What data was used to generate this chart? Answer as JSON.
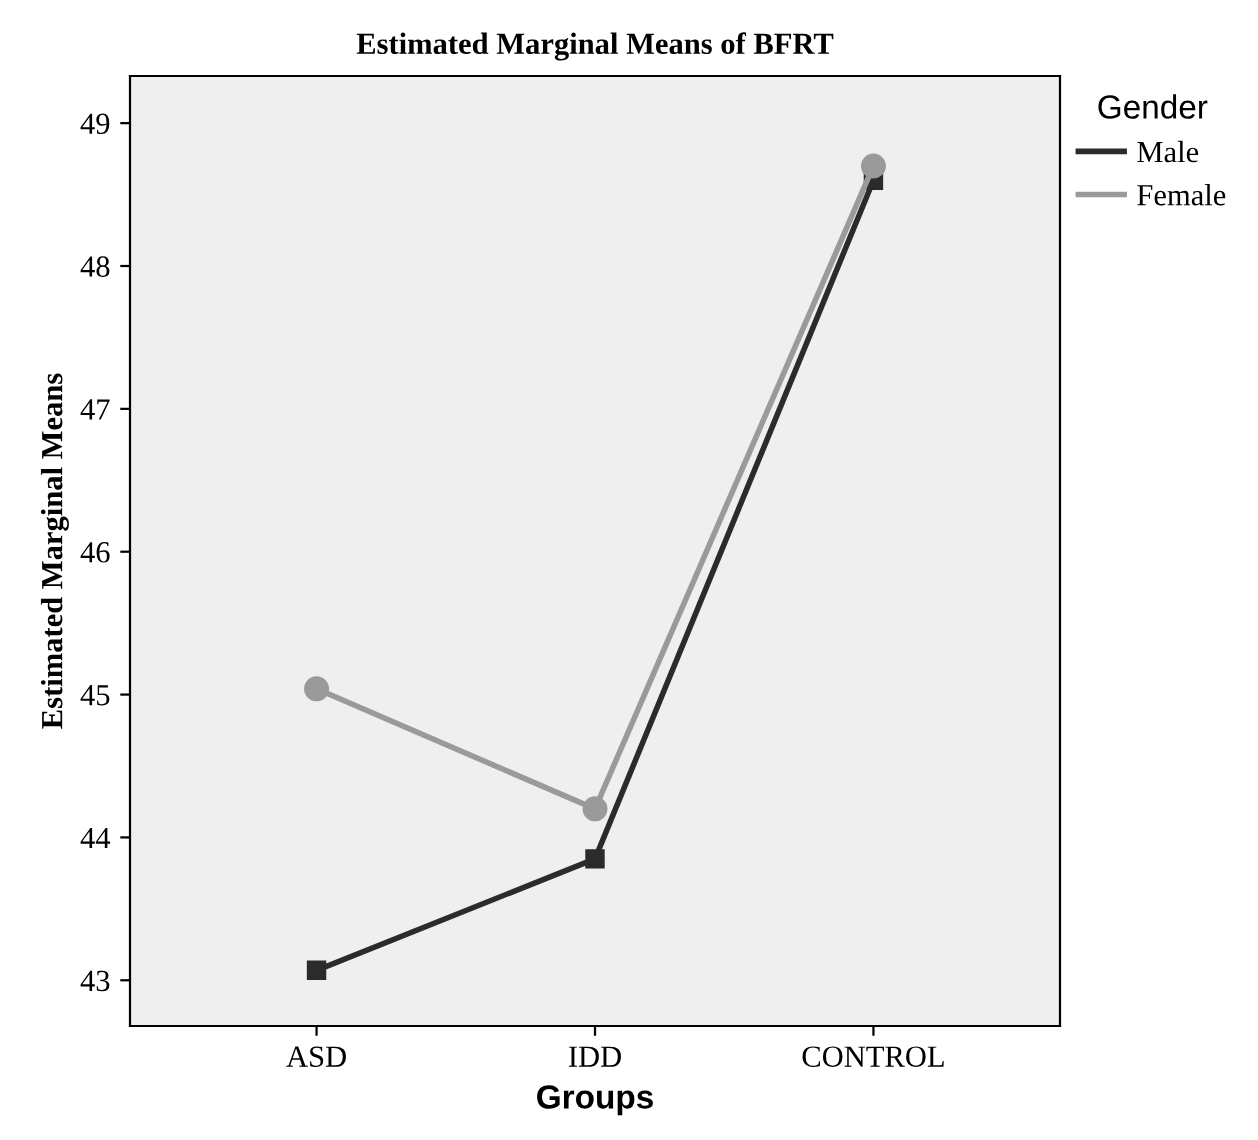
{
  "chart_data": {
    "type": "line",
    "title": "Estimated Marginal Means of BFRT",
    "xlabel": "Groups",
    "ylabel": "Estimated Marginal Means",
    "legend_title": "Gender",
    "categories": [
      "ASD",
      "IDD",
      "CONTROL"
    ],
    "series": [
      {
        "name": "Male",
        "color": "#2b2b2b",
        "values": [
          43.07,
          43.85,
          48.6
        ],
        "marker": "square"
      },
      {
        "name": "Female",
        "color": "#9a9a9a",
        "values": [
          45.04,
          44.2,
          48.7
        ],
        "marker": "circle"
      }
    ],
    "ylim": [
      42.68,
      49.33
    ],
    "yticks": [
      43,
      44,
      45,
      46,
      47,
      48,
      49
    ],
    "grid": false,
    "legend": "top right"
  }
}
